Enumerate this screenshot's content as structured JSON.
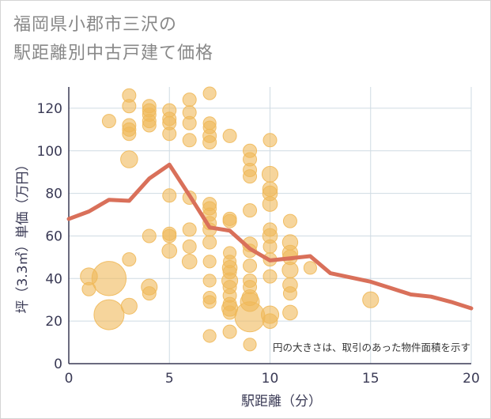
{
  "chart_data": {
    "type": "scatter",
    "title": [
      "福岡県小郡市三沢の",
      "駅距離別中古戸建て価格"
    ],
    "xlabel": "駅距離（分）",
    "ylabel": "坪（3.3㎡）単価（万円）",
    "xlim": [
      0,
      20
    ],
    "ylim": [
      0,
      130
    ],
    "xticks": [
      "0",
      "5",
      "10",
      "15",
      "20"
    ],
    "yticks": [
      "0",
      "20",
      "40",
      "60",
      "80",
      "100",
      "120"
    ],
    "grid": true,
    "annotation": "円の大きさは、取引のあった物件面積を示す",
    "colors": {
      "bubble": "#f0b95a",
      "bubble_opacity": 0.6,
      "line": "#d9705a",
      "grid": "#cfdbe3",
      "axis": "#3a3a55"
    },
    "bubbles": [
      {
        "x": 2,
        "y": 114,
        "s": 1
      },
      {
        "x": 2,
        "y": 40,
        "s": 6.5
      },
      {
        "x": 2,
        "y": 23,
        "s": 5
      },
      {
        "x": 1,
        "y": 41,
        "s": 1.6
      },
      {
        "x": 1,
        "y": 35,
        "s": 1
      },
      {
        "x": 3,
        "y": 126,
        "s": 1
      },
      {
        "x": 3,
        "y": 121,
        "s": 1
      },
      {
        "x": 3,
        "y": 112,
        "s": 1
      },
      {
        "x": 3,
        "y": 110,
        "s": 1
      },
      {
        "x": 3,
        "y": 108,
        "s": 1
      },
      {
        "x": 3,
        "y": 96,
        "s": 1.6
      },
      {
        "x": 3,
        "y": 49,
        "s": 1
      },
      {
        "x": 3,
        "y": 27,
        "s": 1.4
      },
      {
        "x": 4,
        "y": 121,
        "s": 1
      },
      {
        "x": 4,
        "y": 119,
        "s": 1
      },
      {
        "x": 4,
        "y": 117,
        "s": 1
      },
      {
        "x": 4,
        "y": 114,
        "s": 1
      },
      {
        "x": 4,
        "y": 112,
        "s": 1
      },
      {
        "x": 4,
        "y": 60,
        "s": 1
      },
      {
        "x": 4,
        "y": 36,
        "s": 1.4
      },
      {
        "x": 4,
        "y": 33,
        "s": 1
      },
      {
        "x": 5,
        "y": 119,
        "s": 1
      },
      {
        "x": 5,
        "y": 115,
        "s": 1
      },
      {
        "x": 5,
        "y": 113,
        "s": 1
      },
      {
        "x": 5,
        "y": 108,
        "s": 1
      },
      {
        "x": 5,
        "y": 79,
        "s": 1
      },
      {
        "x": 5,
        "y": 61,
        "s": 1
      },
      {
        "x": 5,
        "y": 60,
        "s": 1
      },
      {
        "x": 5,
        "y": 53,
        "s": 1.2
      },
      {
        "x": 6,
        "y": 124,
        "s": 1
      },
      {
        "x": 6,
        "y": 118,
        "s": 1
      },
      {
        "x": 6,
        "y": 113,
        "s": 1
      },
      {
        "x": 6,
        "y": 105,
        "s": 1
      },
      {
        "x": 6,
        "y": 78,
        "s": 1
      },
      {
        "x": 6,
        "y": 63,
        "s": 1
      },
      {
        "x": 6,
        "y": 55,
        "s": 1
      },
      {
        "x": 6,
        "y": 48,
        "s": 1.2
      },
      {
        "x": 7,
        "y": 127,
        "s": 0.9
      },
      {
        "x": 7,
        "y": 113,
        "s": 0.9
      },
      {
        "x": 7,
        "y": 111,
        "s": 0.9
      },
      {
        "x": 7,
        "y": 107,
        "s": 1
      },
      {
        "x": 7,
        "y": 104,
        "s": 1
      },
      {
        "x": 7,
        "y": 75,
        "s": 1
      },
      {
        "x": 7,
        "y": 73,
        "s": 1
      },
      {
        "x": 7,
        "y": 70,
        "s": 1
      },
      {
        "x": 7,
        "y": 66,
        "s": 1
      },
      {
        "x": 7,
        "y": 63,
        "s": 1
      },
      {
        "x": 7,
        "y": 57,
        "s": 1
      },
      {
        "x": 7,
        "y": 48,
        "s": 0.9
      },
      {
        "x": 7,
        "y": 39,
        "s": 0.9
      },
      {
        "x": 7,
        "y": 31,
        "s": 0.9
      },
      {
        "x": 7,
        "y": 29,
        "s": 0.9
      },
      {
        "x": 7,
        "y": 13,
        "s": 0.9
      },
      {
        "x": 8,
        "y": 107,
        "s": 1
      },
      {
        "x": 8,
        "y": 68,
        "s": 1
      },
      {
        "x": 8,
        "y": 67,
        "s": 1
      },
      {
        "x": 8,
        "y": 52,
        "s": 0.9
      },
      {
        "x": 8,
        "y": 48,
        "s": 0.9
      },
      {
        "x": 8,
        "y": 45,
        "s": 1.2
      },
      {
        "x": 8,
        "y": 43,
        "s": 1
      },
      {
        "x": 8,
        "y": 39,
        "s": 1.4
      },
      {
        "x": 8,
        "y": 36,
        "s": 1
      },
      {
        "x": 8,
        "y": 32,
        "s": 1
      },
      {
        "x": 8,
        "y": 28,
        "s": 1
      },
      {
        "x": 8,
        "y": 26,
        "s": 1.4
      },
      {
        "x": 8,
        "y": 24,
        "s": 1
      },
      {
        "x": 8,
        "y": 15,
        "s": 1
      },
      {
        "x": 9,
        "y": 100,
        "s": 1
      },
      {
        "x": 9,
        "y": 96,
        "s": 1
      },
      {
        "x": 9,
        "y": 91,
        "s": 1
      },
      {
        "x": 9,
        "y": 88,
        "s": 1
      },
      {
        "x": 9,
        "y": 72,
        "s": 1
      },
      {
        "x": 9,
        "y": 56,
        "s": 1.2
      },
      {
        "x": 9,
        "y": 53,
        "s": 1
      },
      {
        "x": 9,
        "y": 46,
        "s": 1
      },
      {
        "x": 9,
        "y": 39,
        "s": 1
      },
      {
        "x": 9,
        "y": 36,
        "s": 1
      },
      {
        "x": 9,
        "y": 31,
        "s": 1.4
      },
      {
        "x": 9,
        "y": 29,
        "s": 2
      },
      {
        "x": 9,
        "y": 22,
        "s": 5
      },
      {
        "x": 9,
        "y": 9,
        "s": 0.9
      },
      {
        "x": 10,
        "y": 105,
        "s": 1
      },
      {
        "x": 10,
        "y": 89,
        "s": 1.4
      },
      {
        "x": 10,
        "y": 82,
        "s": 1.2
      },
      {
        "x": 10,
        "y": 80,
        "s": 1.2
      },
      {
        "x": 10,
        "y": 75,
        "s": 1.2
      },
      {
        "x": 10,
        "y": 63,
        "s": 1
      },
      {
        "x": 10,
        "y": 60,
        "s": 1.2
      },
      {
        "x": 10,
        "y": 55,
        "s": 1
      },
      {
        "x": 10,
        "y": 49,
        "s": 1
      },
      {
        "x": 10,
        "y": 41,
        "s": 1
      },
      {
        "x": 10,
        "y": 23,
        "s": 1.7
      },
      {
        "x": 10,
        "y": 20,
        "s": 1.2
      },
      {
        "x": 11,
        "y": 67,
        "s": 1
      },
      {
        "x": 11,
        "y": 57,
        "s": 1.3
      },
      {
        "x": 11,
        "y": 52,
        "s": 1.3
      },
      {
        "x": 11,
        "y": 50,
        "s": 1.2
      },
      {
        "x": 11,
        "y": 44,
        "s": 1.4
      },
      {
        "x": 11,
        "y": 37,
        "s": 1.2
      },
      {
        "x": 11,
        "y": 33,
        "s": 1
      },
      {
        "x": 11,
        "y": 24,
        "s": 1.2
      },
      {
        "x": 12,
        "y": 45,
        "s": 0.9
      },
      {
        "x": 15,
        "y": 30,
        "s": 1.4
      }
    ],
    "series": [
      {
        "type": "line",
        "x": [
          0,
          1,
          2,
          3,
          4,
          5,
          6,
          7,
          8,
          9,
          10,
          11,
          12,
          13,
          14,
          15,
          16,
          17,
          18,
          19,
          20
        ],
        "values": [
          68,
          71.5,
          77,
          76.5,
          87,
          93.5,
          79,
          64,
          62.5,
          54,
          48.5,
          49.5,
          50.5,
          42.5,
          40.5,
          38.5,
          35.5,
          32.5,
          31.5,
          29,
          26
        ]
      }
    ]
  }
}
